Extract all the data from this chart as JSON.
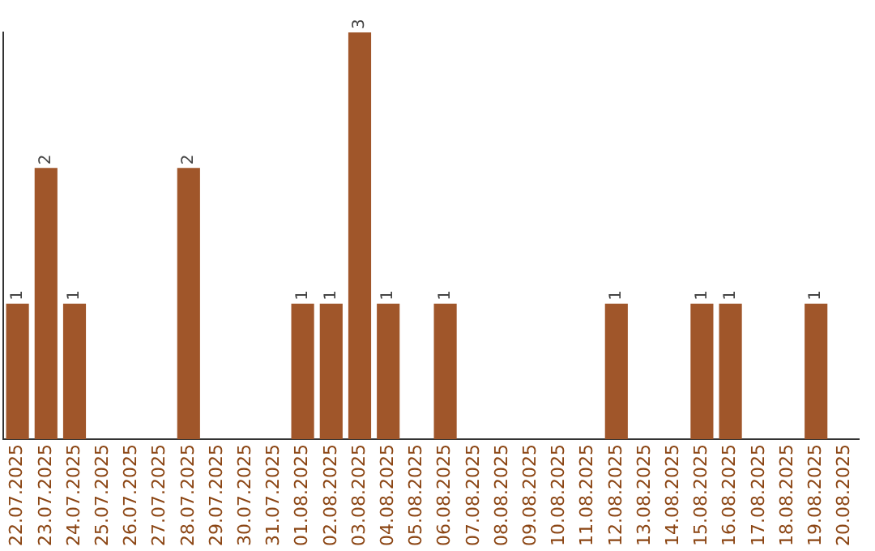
{
  "chart_data": {
    "type": "bar",
    "categories": [
      "22.07.2025",
      "23.07.2025",
      "24.07.2025",
      "25.07.2025",
      "26.07.2025",
      "27.07.2025",
      "28.07.2025",
      "29.07.2025",
      "30.07.2025",
      "31.07.2025",
      "01.08.2025",
      "02.08.2025",
      "03.08.2025",
      "04.08.2025",
      "05.08.2025",
      "06.08.2025",
      "07.08.2025",
      "08.08.2025",
      "09.08.2025",
      "10.08.2025",
      "11.08.2025",
      "12.08.2025",
      "13.08.2025",
      "14.08.2025",
      "15.08.2025",
      "16.08.2025",
      "17.08.2025",
      "18.08.2025",
      "19.08.2025",
      "20.08.2025"
    ],
    "values": [
      1,
      2,
      1,
      0,
      0,
      0,
      2,
      0,
      0,
      0,
      1,
      1,
      3,
      1,
      0,
      1,
      0,
      0,
      0,
      0,
      0,
      1,
      0,
      0,
      1,
      1,
      0,
      0,
      1,
      0
    ],
    "value_labels": [
      "1",
      "2",
      "1",
      null,
      null,
      null,
      "2",
      null,
      null,
      null,
      "1",
      "1",
      "3",
      "1",
      null,
      "1",
      null,
      null,
      null,
      null,
      null,
      "1",
      null,
      null,
      "1",
      "1",
      null,
      null,
      "1",
      null
    ],
    "color": "#a0562a",
    "ylim": [
      0,
      3
    ],
    "tick_labels": "x",
    "grid": false,
    "legend": false
  }
}
